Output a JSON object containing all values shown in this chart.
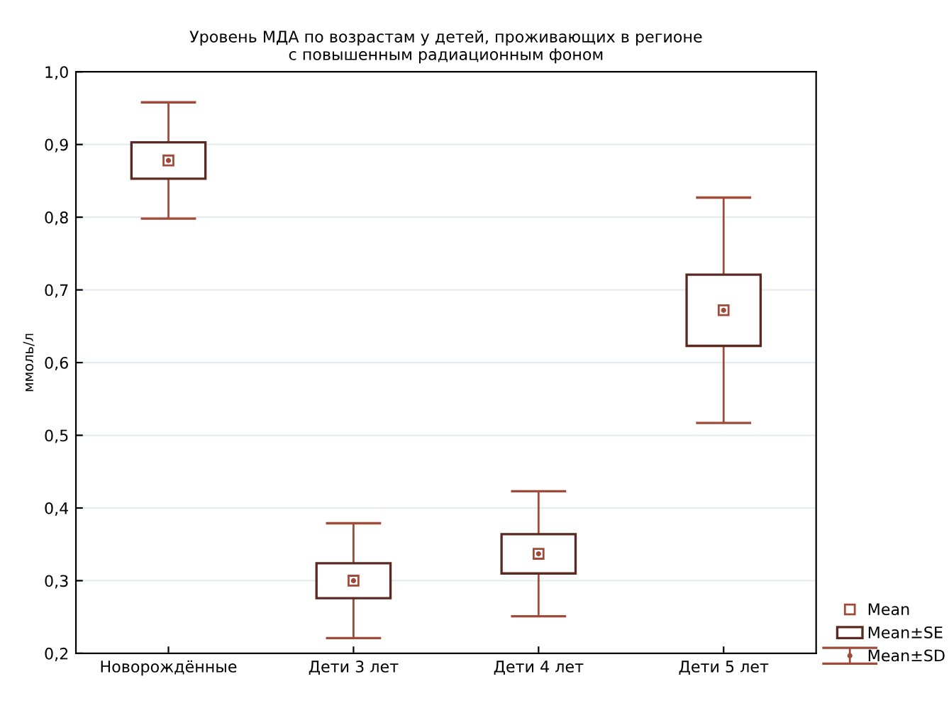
{
  "chart_data": {
    "type": "scatter",
    "title": "Уровень МДА по возрастам у детей, проживающих в регионе\nс повышенным радиационным фоном",
    "ylabel": "ммоль/л",
    "categories": [
      "Новорождённые",
      "Дети 3 лет",
      "Дети 4 лет",
      "Дети 5 лет"
    ],
    "series": [
      {
        "name": "Mean",
        "marker": "square",
        "color": "#a04a3a",
        "values": [
          0.878,
          0.3,
          0.337,
          0.672
        ]
      },
      {
        "name": "Mean±SE",
        "type": "bar",
        "color": "#5a2a22",
        "base": [
          0.853,
          0.276,
          0.31,
          0.623
        ],
        "values": [
          0.05,
          0.048,
          0.054,
          0.098
        ]
      },
      {
        "name": "Mean±SD",
        "type": "scatter",
        "marker": "circle",
        "color": "#a04a3a",
        "values": [
          0.878,
          0.3,
          0.337,
          0.672
        ],
        "errors": [
          0.08,
          0.079,
          0.086,
          0.155
        ]
      }
    ],
    "ylim": [
      0.2,
      1.0
    ],
    "yticks": [
      {
        "value": 0.2,
        "label": "0,2"
      },
      {
        "value": 0.3,
        "label": "0,3"
      },
      {
        "value": 0.4,
        "label": "0,4"
      },
      {
        "value": 0.5,
        "label": "0,5"
      },
      {
        "value": 0.6,
        "label": "0,6"
      },
      {
        "value": 0.7,
        "label": "0,7"
      },
      {
        "value": 0.8,
        "label": "0,8"
      },
      {
        "value": 0.9,
        "label": "0,9"
      },
      {
        "value": 1.0,
        "label": "1,0"
      }
    ],
    "grid": "y",
    "legend": "bottom right"
  }
}
